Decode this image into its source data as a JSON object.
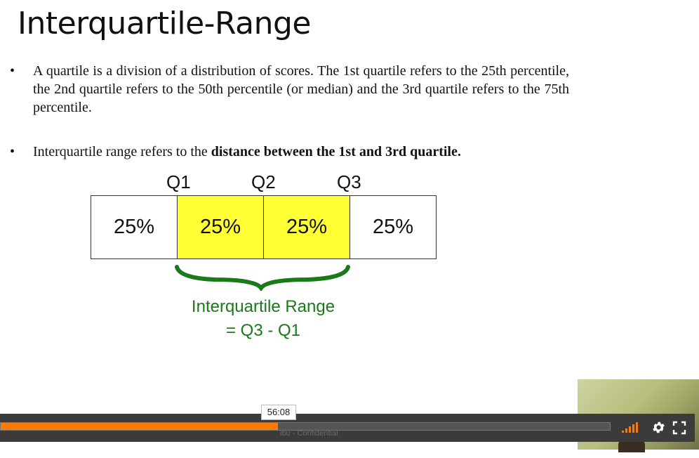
{
  "slide": {
    "title": "Interquartile-Range",
    "bullet1": "A quartile is a division of a distribution of scores. The 1st quartile refers to the 25th percentile, the 2nd quartile refers to the 50th percentile (or median) and the 3rd quartile refers to the 75th percentile.",
    "bullet2_prefix": "Interquartile range refers to the ",
    "bullet2_bold": "distance between the 1st and 3rd quartile.",
    "quartile_labels": [
      "Q1",
      "Q2",
      "Q3"
    ],
    "segments": [
      "25%",
      "25%",
      "25%",
      "25%"
    ],
    "iqr_label": "Interquartile Range",
    "iqr_formula": "= Q3 - Q1"
  },
  "player": {
    "time_tooltip": "56:08",
    "progress_percent": 45.5,
    "watermark": "ibu - Confidential",
    "colors": {
      "accent": "#ff7a00",
      "bar": "#3b3b3b",
      "highlight": "#ffff33",
      "iqr": "#1a7a1a"
    },
    "icons": [
      "volume-icon",
      "settings-gear-icon",
      "fullscreen-icon"
    ]
  }
}
